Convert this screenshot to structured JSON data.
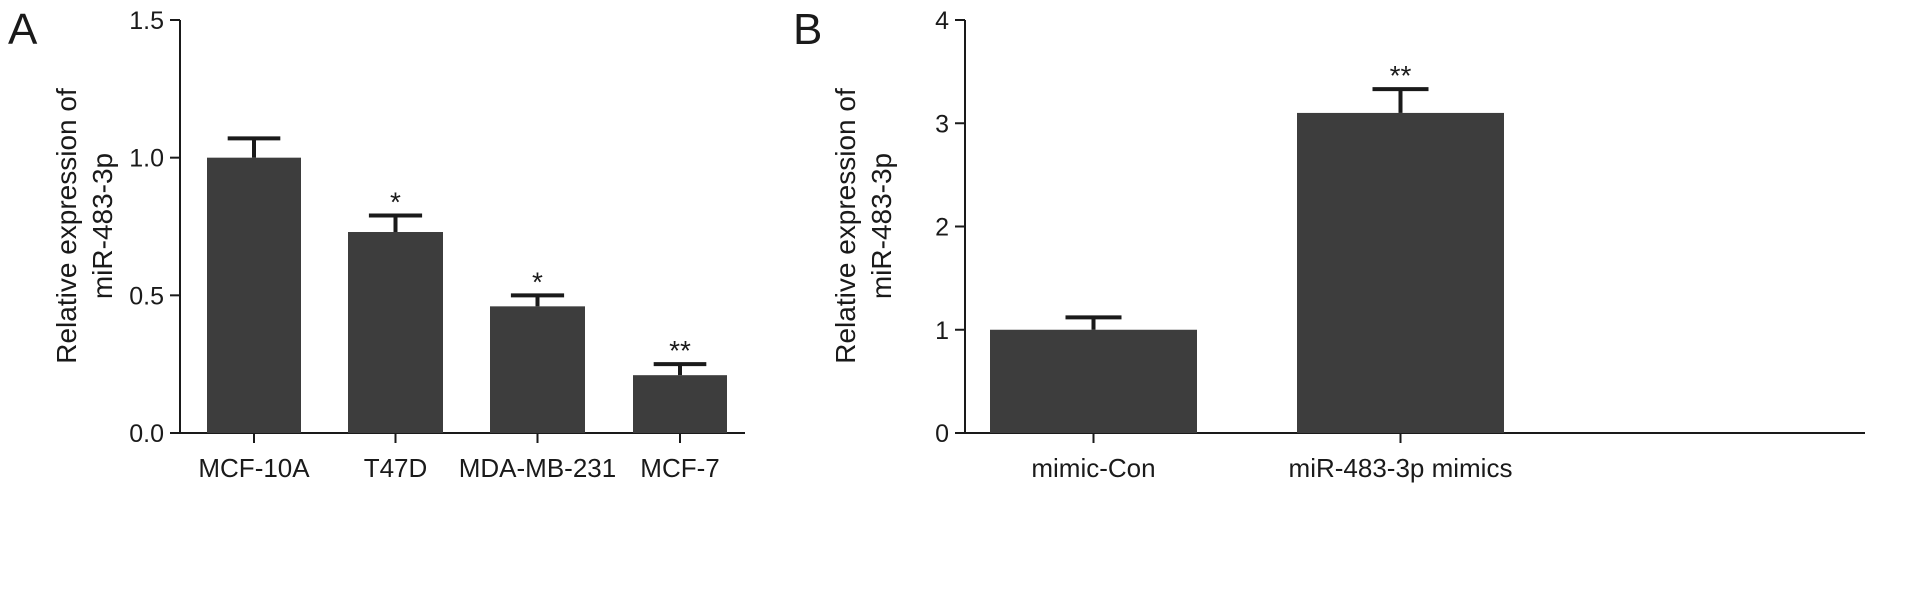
{
  "chart_data": [
    {
      "panel": "A",
      "type": "bar",
      "categories": [
        "MCF-10A",
        "T47D",
        "MDA-MB-231",
        "MCF-7"
      ],
      "values": [
        1.0,
        0.73,
        0.46,
        0.21
      ],
      "errors": [
        0.07,
        0.06,
        0.04,
        0.04
      ],
      "significance": [
        "",
        "*",
        "*",
        "**"
      ],
      "title": "",
      "xlabel": "",
      "ylabel": [
        "Relative expression of",
        "miR-483-3p"
      ],
      "ylim": [
        0,
        1.5
      ],
      "yticks": [
        0,
        0.5,
        1.0,
        1.5
      ],
      "ytick_labels": [
        "0.0",
        "0.5",
        "1.0",
        "1.5"
      ],
      "grid": false,
      "legend": "none",
      "bar_color": "#3d3d3d"
    },
    {
      "panel": "B",
      "type": "bar",
      "categories": [
        "mimic-Con",
        "miR-483-3p mimics"
      ],
      "values": [
        1.0,
        3.1
      ],
      "errors": [
        0.12,
        0.23
      ],
      "significance": [
        "",
        "**"
      ],
      "title": "",
      "xlabel": "",
      "ylabel": [
        "Relative expression of",
        "miR-483-3p"
      ],
      "ylim": [
        0,
        4
      ],
      "yticks": [
        0,
        1,
        2,
        3,
        4
      ],
      "ytick_labels": [
        "0",
        "1",
        "2",
        "3",
        "4"
      ],
      "grid": false,
      "legend": "none",
      "bar_color": "#3d3d3d"
    }
  ]
}
